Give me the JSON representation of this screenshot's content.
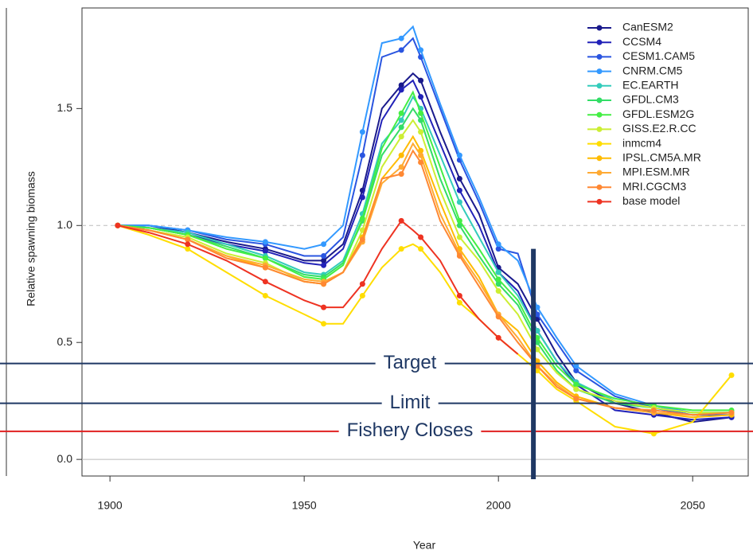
{
  "chart_data": {
    "type": "line",
    "x_label": "Year",
    "y_label": "Relative spawning biomass",
    "x": [
      1902,
      1910,
      1920,
      1930,
      1940,
      1950,
      1955,
      1960,
      1965,
      1970,
      1975,
      1978,
      1980,
      1985,
      1990,
      1995,
      2000,
      2005,
      2010,
      2015,
      2020,
      2030,
      2040,
      2050,
      2060
    ],
    "series": [
      {
        "name": "CanESM2",
        "color": "#1a1a8c",
        "values": [
          1.0,
          1.0,
          0.97,
          0.93,
          0.9,
          0.85,
          0.85,
          0.92,
          1.15,
          1.5,
          1.6,
          1.65,
          1.62,
          1.4,
          1.2,
          1.05,
          0.82,
          0.75,
          0.6,
          0.45,
          0.33,
          0.24,
          0.2,
          0.16,
          0.18
        ]
      },
      {
        "name": "CCSM4",
        "color": "#2222b8",
        "values": [
          1.0,
          0.99,
          0.96,
          0.92,
          0.89,
          0.84,
          0.83,
          0.9,
          1.12,
          1.45,
          1.58,
          1.62,
          1.55,
          1.35,
          1.15,
          1.0,
          0.8,
          0.72,
          0.55,
          0.42,
          0.32,
          0.21,
          0.19,
          0.17,
          0.18
        ]
      },
      {
        "name": "CESM1.CAM5",
        "color": "#2a55e0",
        "values": [
          1.0,
          1.0,
          0.98,
          0.94,
          0.92,
          0.87,
          0.87,
          0.95,
          1.3,
          1.72,
          1.75,
          1.8,
          1.72,
          1.5,
          1.28,
          1.1,
          0.9,
          0.88,
          0.62,
          0.5,
          0.38,
          0.27,
          0.22,
          0.19,
          0.19
        ]
      },
      {
        "name": "CNRM.CM5",
        "color": "#3399ff",
        "values": [
          1.0,
          1.0,
          0.98,
          0.95,
          0.93,
          0.9,
          0.92,
          1.0,
          1.4,
          1.78,
          1.8,
          1.85,
          1.75,
          1.52,
          1.3,
          1.12,
          0.92,
          0.85,
          0.65,
          0.52,
          0.4,
          0.28,
          0.23,
          0.2,
          0.2
        ]
      },
      {
        "name": "EC.EARTH",
        "color": "#33ccbb",
        "values": [
          1.0,
          0.99,
          0.97,
          0.92,
          0.87,
          0.8,
          0.79,
          0.85,
          1.05,
          1.35,
          1.45,
          1.55,
          1.5,
          1.3,
          1.1,
          0.95,
          0.8,
          0.7,
          0.55,
          0.42,
          0.33,
          0.25,
          0.22,
          0.2,
          0.2
        ]
      },
      {
        "name": "GFDL.CM3",
        "color": "#33dd66",
        "values": [
          1.0,
          0.99,
          0.96,
          0.91,
          0.86,
          0.79,
          0.78,
          0.84,
          1.02,
          1.3,
          1.42,
          1.5,
          1.45,
          1.2,
          1.0,
          0.87,
          0.75,
          0.66,
          0.5,
          0.38,
          0.3,
          0.24,
          0.22,
          0.2,
          0.2
        ]
      },
      {
        "name": "GFDL.ESM2G",
        "color": "#44ee44",
        "values": [
          1.0,
          0.99,
          0.96,
          0.9,
          0.86,
          0.78,
          0.77,
          0.83,
          1.03,
          1.33,
          1.48,
          1.57,
          1.48,
          1.25,
          1.02,
          0.9,
          0.77,
          0.68,
          0.52,
          0.4,
          0.32,
          0.26,
          0.23,
          0.21,
          0.21
        ]
      },
      {
        "name": "GISS.E2.R.CC",
        "color": "#ccee33",
        "values": [
          1.0,
          0.98,
          0.95,
          0.88,
          0.84,
          0.76,
          0.75,
          0.8,
          0.98,
          1.25,
          1.38,
          1.45,
          1.4,
          1.15,
          0.95,
          0.85,
          0.72,
          0.62,
          0.47,
          0.37,
          0.3,
          0.25,
          0.22,
          0.2,
          0.2
        ]
      },
      {
        "name": "inmcm4",
        "color": "#ffdd00",
        "values": [
          1.0,
          0.96,
          0.9,
          0.8,
          0.7,
          0.62,
          0.58,
          0.58,
          0.7,
          0.82,
          0.9,
          0.92,
          0.9,
          0.8,
          0.67,
          0.6,
          0.52,
          0.45,
          0.38,
          0.3,
          0.25,
          0.14,
          0.11,
          0.16,
          0.36
        ]
      },
      {
        "name": "IPSL.CM5A.MR",
        "color": "#ffbb00",
        "values": [
          1.0,
          0.98,
          0.94,
          0.87,
          0.82,
          0.76,
          0.75,
          0.8,
          0.95,
          1.2,
          1.3,
          1.38,
          1.32,
          1.1,
          0.9,
          0.78,
          0.62,
          0.55,
          0.42,
          0.33,
          0.27,
          0.22,
          0.2,
          0.18,
          0.19
        ]
      },
      {
        "name": "MPI.ESM.MR",
        "color": "#ffaa33",
        "values": [
          1.0,
          0.98,
          0.94,
          0.87,
          0.83,
          0.77,
          0.76,
          0.8,
          0.93,
          1.18,
          1.25,
          1.35,
          1.3,
          1.05,
          0.88,
          0.76,
          0.62,
          0.52,
          0.4,
          0.32,
          0.26,
          0.22,
          0.2,
          0.19,
          0.2
        ]
      },
      {
        "name": "MRI.CGCM3",
        "color": "#ff8833",
        "values": [
          1.0,
          0.98,
          0.94,
          0.86,
          0.82,
          0.76,
          0.75,
          0.8,
          0.94,
          1.2,
          1.22,
          1.32,
          1.27,
          1.02,
          0.87,
          0.74,
          0.61,
          0.5,
          0.4,
          0.31,
          0.26,
          0.22,
          0.21,
          0.19,
          0.2
        ]
      },
      {
        "name": "base model",
        "color": "#ee3322",
        "values": [
          1.0,
          0.97,
          0.92,
          0.85,
          0.76,
          0.68,
          0.65,
          0.65,
          0.75,
          0.9,
          1.02,
          0.98,
          0.95,
          0.85,
          0.7,
          0.6,
          0.52,
          0.45,
          null,
          null,
          null,
          null,
          null,
          null,
          null
        ]
      }
    ],
    "xlim": [
      1892.8,
      2064.3
    ],
    "ylim": [
      -0.071,
      1.93
    ],
    "xticks": [
      1900,
      1950,
      2000,
      2050
    ],
    "yticks": [
      {
        "value": 0,
        "label": "0.0"
      },
      0.5,
      {
        "value": 1,
        "label": "1.0"
      },
      1.5
    ],
    "guide_lines": [
      1,
      0
    ],
    "reference_lines": [
      {
        "label": "Target",
        "value": 0.41,
        "color": "#1f3864"
      },
      {
        "label": "Limit",
        "value": 0.24,
        "color": "#1f3864"
      },
      {
        "label": "Fishery Closes",
        "value": 0.12,
        "color": "#e02020"
      }
    ],
    "current_year": {
      "x": 2009,
      "top": 0.9,
      "color": "#1f3864"
    },
    "legend": "top-right"
  }
}
